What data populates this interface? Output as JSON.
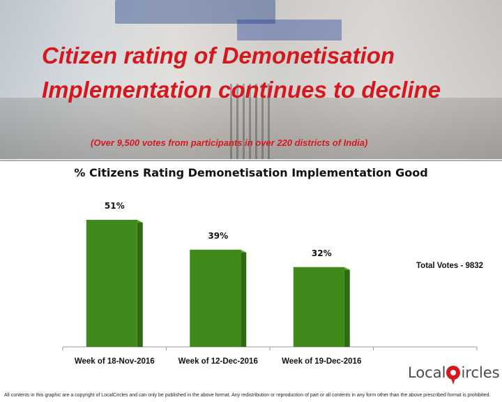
{
  "header": {
    "title": "Citizen rating of Demonetisation Implementation continues to decline",
    "subtitle": "(Over 9,500 votes from participants in over 220 districts of India)"
  },
  "chart_data": {
    "type": "bar",
    "title": "% Citizens Rating Demonetisation Implementation Good",
    "categories": [
      "Week of 18-Nov-2016",
      "Week of 12-Dec-2016",
      "Week of 19-Dec-2016"
    ],
    "values": [
      51,
      39,
      32
    ],
    "value_labels": [
      "51%",
      "39%",
      "32%"
    ],
    "bar_color": "#3f8a1a",
    "ylim": [
      0,
      60
    ],
    "grid": false,
    "annotation": "Total Votes - 9832"
  },
  "branding": {
    "logo_text_left": "Local",
    "logo_text_right": "ircles",
    "accent_color": "#d6181e"
  },
  "footer": {
    "disclaimer": "All contents in this graphic are a copyright of LocalCircles and can only be published in the above format. Any redistribution or reproduction of part or all contents in any form other than the above prescribed format is prohibited."
  }
}
